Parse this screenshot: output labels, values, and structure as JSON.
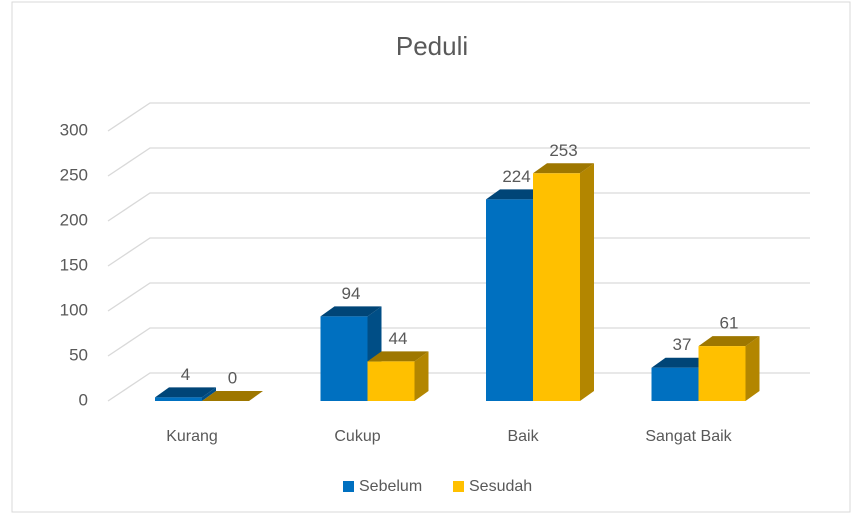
{
  "chart_data": {
    "type": "bar3d",
    "title": "Peduli",
    "categories": [
      "Kurang",
      "Cukup",
      "Baik",
      "Sangat Baik"
    ],
    "series": [
      {
        "name": "Sebelum",
        "color": "#0070c0",
        "values": [
          4,
          94,
          224,
          37
        ]
      },
      {
        "name": "Sesudah",
        "color": "#ffc000",
        "values": [
          0,
          44,
          253,
          61
        ]
      }
    ],
    "ylim": [
      0,
      300
    ],
    "yticks": [
      0,
      50,
      100,
      150,
      200,
      250,
      300
    ],
    "grid": true,
    "legend": "bottom"
  }
}
